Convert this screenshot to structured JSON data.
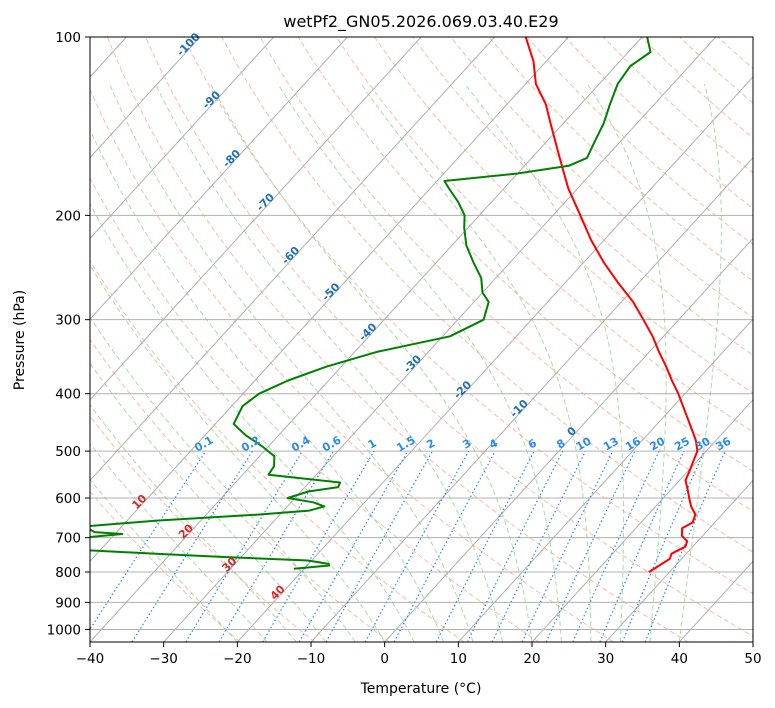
{
  "chart_data": {
    "type": "line",
    "subtype": "skew-t log-p diagram",
    "title": "wetPf2_GN05.2026.069.03.40.E29",
    "xlabel": "Temperature (°C)",
    "ylabel": "Pressure (hPa)",
    "xlim": [
      -40,
      50
    ],
    "ylim": [
      1050,
      100
    ],
    "y_scale": "log",
    "x_ticks": [
      -40,
      -30,
      -20,
      -10,
      0,
      10,
      20,
      30,
      40,
      50
    ],
    "x_tick_labels": [
      "−40",
      "−30",
      "−20",
      "−10",
      "0",
      "10",
      "20",
      "30",
      "40",
      "50"
    ],
    "y_ticks": [
      100,
      200,
      300,
      400,
      500,
      600,
      700,
      800,
      900,
      1000
    ],
    "y_tick_labels": [
      "100",
      "200",
      "300",
      "400",
      "500",
      "600",
      "700",
      "800",
      "900",
      "1000"
    ],
    "grid": true,
    "series": [
      {
        "color": "#ff0000",
        "points": [
          {
            "p": 800,
            "t": 27.2
          },
          {
            "p": 780,
            "t": 27.8
          },
          {
            "p": 760,
            "t": 28.4
          },
          {
            "p": 745,
            "t": 28.0
          },
          {
            "p": 725,
            "t": 29.0
          },
          {
            "p": 710,
            "t": 28.6
          },
          {
            "p": 695,
            "t": 27.2
          },
          {
            "p": 675,
            "t": 26.3
          },
          {
            "p": 660,
            "t": 27.0
          },
          {
            "p": 640,
            "t": 26.4
          },
          {
            "p": 620,
            "t": 24.8
          },
          {
            "p": 600,
            "t": 23.5
          },
          {
            "p": 580,
            "t": 22.2
          },
          {
            "p": 560,
            "t": 20.8
          },
          {
            "p": 540,
            "t": 20.2
          },
          {
            "p": 520,
            "t": 19.5
          },
          {
            "p": 500,
            "t": 18.8
          },
          {
            "p": 480,
            "t": 17.3
          },
          {
            "p": 460,
            "t": 15.4
          },
          {
            "p": 440,
            "t": 13.4
          },
          {
            "p": 420,
            "t": 11.3
          },
          {
            "p": 400,
            "t": 9.1
          },
          {
            "p": 380,
            "t": 6.6
          },
          {
            "p": 360,
            "t": 4.1
          },
          {
            "p": 340,
            "t": 1.3
          },
          {
            "p": 320,
            "t": -1.5
          },
          {
            "p": 300,
            "t": -4.8
          },
          {
            "p": 280,
            "t": -8.4
          },
          {
            "p": 260,
            "t": -12.8
          },
          {
            "p": 240,
            "t": -17.3
          },
          {
            "p": 220,
            "t": -21.8
          },
          {
            "p": 200,
            "t": -26.3
          },
          {
            "p": 180,
            "t": -31.3
          },
          {
            "p": 160,
            "t": -36.2
          },
          {
            "p": 140,
            "t": -41.7
          },
          {
            "p": 130,
            "t": -44.7
          },
          {
            "p": 120,
            "t": -48.6
          },
          {
            "p": 110,
            "t": -51.7
          },
          {
            "p": 100,
            "t": -55.8
          }
        ]
      },
      {
        "color": "#008000",
        "points": [
          {
            "p": 790,
            "t": -21.4
          },
          {
            "p": 780,
            "t": -17.0
          },
          {
            "p": 775,
            "t": -17.3
          },
          {
            "p": 765,
            "t": -20.5
          },
          {
            "p": 755,
            "t": -32.0
          },
          {
            "p": 745,
            "t": -42.0
          },
          {
            "p": 735,
            "t": -52.0
          },
          {
            "p": 720,
            "t": -60.0
          },
          {
            "p": 700,
            "t": -54.0
          },
          {
            "p": 690,
            "t": -49.0
          },
          {
            "p": 685,
            "t": -53.0
          },
          {
            "p": 670,
            "t": -55.0
          },
          {
            "p": 655,
            "t": -46.0
          },
          {
            "p": 640,
            "t": -33.0
          },
          {
            "p": 630,
            "t": -26.5
          },
          {
            "p": 620,
            "t": -25.0
          },
          {
            "p": 610,
            "t": -27.0
          },
          {
            "p": 600,
            "t": -31.0
          },
          {
            "p": 585,
            "t": -29.0
          },
          {
            "p": 575,
            "t": -25.5
          },
          {
            "p": 565,
            "t": -25.8
          },
          {
            "p": 548,
            "t": -36.5
          },
          {
            "p": 530,
            "t": -36.8
          },
          {
            "p": 510,
            "t": -38.0
          },
          {
            "p": 490,
            "t": -41.0
          },
          {
            "p": 470,
            "t": -44.5
          },
          {
            "p": 450,
            "t": -47.5
          },
          {
            "p": 420,
            "t": -48.5
          },
          {
            "p": 400,
            "t": -47.8
          },
          {
            "p": 380,
            "t": -45.5
          },
          {
            "p": 360,
            "t": -42.0
          },
          {
            "p": 340,
            "t": -37.0
          },
          {
            "p": 320,
            "t": -29.0
          },
          {
            "p": 300,
            "t": -26.5
          },
          {
            "p": 280,
            "t": -28.0
          },
          {
            "p": 270,
            "t": -30.0
          },
          {
            "p": 255,
            "t": -32.0
          },
          {
            "p": 240,
            "t": -35.0
          },
          {
            "p": 225,
            "t": -38.0
          },
          {
            "p": 210,
            "t": -40.5
          },
          {
            "p": 200,
            "t": -42.0
          },
          {
            "p": 190,
            "t": -44.5
          },
          {
            "p": 180,
            "t": -47.5
          },
          {
            "p": 175,
            "t": -49.0
          },
          {
            "p": 170,
            "t": -40.0
          },
          {
            "p": 165,
            "t": -34.0
          },
          {
            "p": 160,
            "t": -32.5
          },
          {
            "p": 150,
            "t": -33.5
          },
          {
            "p": 140,
            "t": -34.5
          },
          {
            "p": 130,
            "t": -36.0
          },
          {
            "p": 120,
            "t": -37.5
          },
          {
            "p": 112,
            "t": -38.0
          },
          {
            "p": 106,
            "t": -37.0
          },
          {
            "p": 100,
            "t": -39.3
          }
        ]
      }
    ],
    "dry_adiabat_labels": [
      "-100",
      "-90",
      "-80",
      "-70",
      "-60",
      "-50",
      "-40",
      "-30",
      "-20",
      "-10",
      "0"
    ],
    "moist_adiabat_labels": [
      "10",
      "20",
      "30",
      "40"
    ],
    "mixing_ratio_labels": [
      "0.1",
      "0.2",
      "0.4",
      "0.6",
      "1",
      "1.5",
      "2",
      "3",
      "4",
      "6",
      "8",
      "10",
      "13",
      "16",
      "20",
      "25",
      "30",
      "36"
    ]
  },
  "colors": {
    "temperature": "#ff0000",
    "dewpoint": "#008000",
    "isobar_isotherm_grid": "#b0b0b0",
    "dry_adiabat": "#f7a58a",
    "moist_adiabat": "#8fcf8f",
    "mixing_ratio": "#2b8ce6",
    "dry_label": "#1f6fb4",
    "moist_label": "#d62728"
  }
}
